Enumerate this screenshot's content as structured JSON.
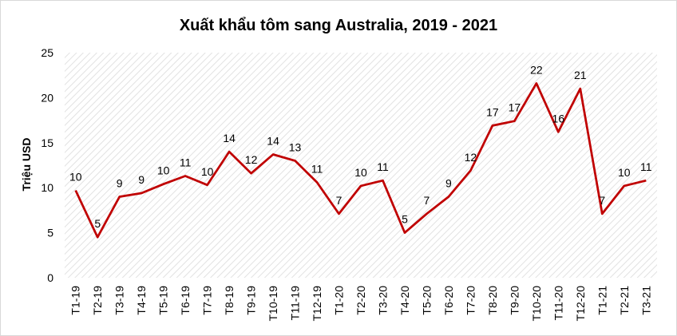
{
  "chart_data": {
    "type": "line",
    "title": "Xuất khẩu tôm sang Australia, 2019 - 2021",
    "ylabel": "Triệu USD",
    "xlabel": "",
    "ylim": [
      0,
      25
    ],
    "yticks": [
      0,
      5,
      10,
      15,
      20,
      25
    ],
    "grid": "hatched plot area",
    "legend": "none",
    "line_color": "#c00000",
    "categories": [
      "T1-19",
      "T2-19",
      "T3-19",
      "T4-19",
      "T5-19",
      "T6-19",
      "T7-19",
      "T8-19",
      "T9-19",
      "T10-19",
      "T11-19",
      "T12-19",
      "T1-20",
      "T2-20",
      "T3-20",
      "T4-20",
      "T5-20",
      "T6-20",
      "T7-20",
      "T8-20",
      "T9-20",
      "T10-20",
      "T11-20",
      "T12-20",
      "T1-21",
      "T2-21",
      "T3-21"
    ],
    "series": [
      {
        "values": [
          9.7,
          4.5,
          9.0,
          9.4,
          10.4,
          11.3,
          10.3,
          14.0,
          11.6,
          13.7,
          13.0,
          10.6,
          7.1,
          10.2,
          10.8,
          5.0,
          7.1,
          9.0,
          11.9,
          16.9,
          17.4,
          21.6,
          16.2,
          21.0,
          7.1,
          10.2,
          10.8
        ],
        "labels": [
          "10",
          "5",
          "9",
          "9",
          "10",
          "11",
          "10",
          "14",
          "12",
          "14",
          "13",
          "11",
          "7",
          "10",
          "11",
          "5",
          "7",
          "9",
          "12",
          "17",
          "17",
          "22",
          "16",
          "21",
          "7",
          "10",
          "11"
        ]
      }
    ]
  }
}
